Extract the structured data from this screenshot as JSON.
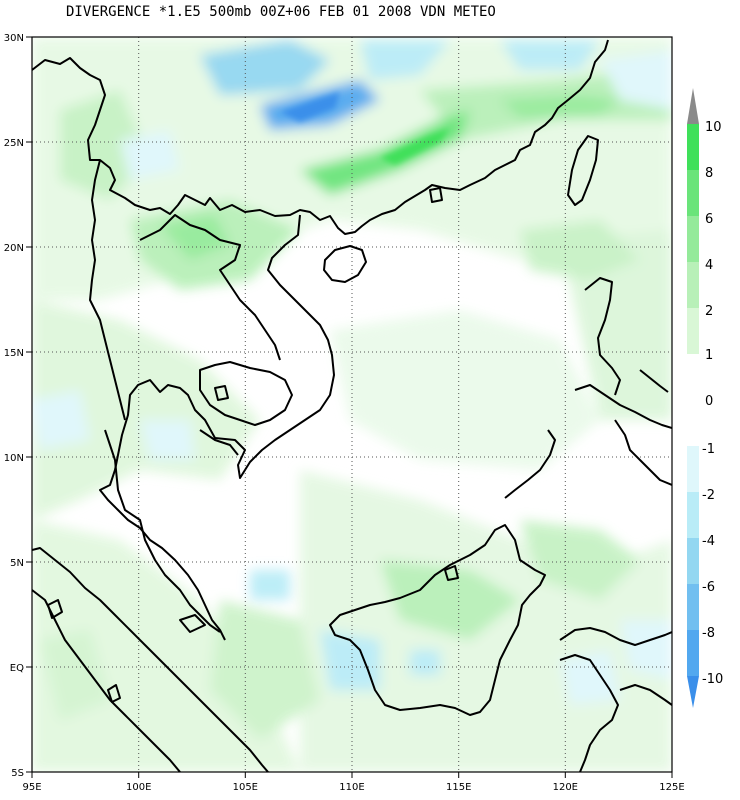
{
  "title": "DIVERGENCE *1.E5 500mb 00Z+06 FEB 01 2008 VDN METEO",
  "map": {
    "lon_range": [
      95,
      125
    ],
    "lat_range": [
      -5,
      30
    ],
    "x_ticks": [
      "95E",
      "100E",
      "105E",
      "110E",
      "115E",
      "120E",
      "125E"
    ],
    "y_ticks": [
      "30N",
      "25N",
      "20N",
      "15N",
      "10N",
      "5N",
      "EQ",
      "5S"
    ],
    "grid": "dotted"
  },
  "colorbar": {
    "labels": [
      "10",
      "8",
      "6",
      "4",
      "2",
      "1",
      "0",
      "-1",
      "-2",
      "-4",
      "-6",
      "-8",
      "-10"
    ],
    "positive_colors": [
      "#3fe05a",
      "#6ae47a",
      "#94ea9a",
      "#b8f0b8",
      "#d9f7d6",
      "#ffffff"
    ],
    "negative_colors": [
      "#dff7fb",
      "#b9ecf7",
      "#93d7f1",
      "#71bff0",
      "#52a8ef",
      "#3a8fea"
    ],
    "arrow_top": "#8a8a8a",
    "arrow_bottom": "#3a8fea"
  }
}
